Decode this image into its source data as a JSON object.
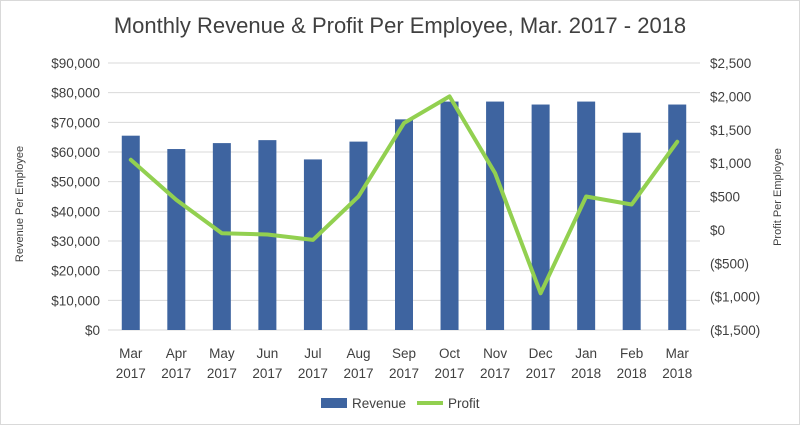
{
  "chart_data": {
    "type": "bar",
    "title": "Monthly Revenue & Profit Per Employee, Mar. 2017 - 2018",
    "categories": [
      [
        "Mar",
        "2017"
      ],
      [
        "Apr",
        "2017"
      ],
      [
        "May",
        "2017"
      ],
      [
        "Jun",
        "2017"
      ],
      [
        "Jul",
        "2017"
      ],
      [
        "Aug",
        "2017"
      ],
      [
        "Sep",
        "2017"
      ],
      [
        "Oct",
        "2017"
      ],
      [
        "Nov",
        "2017"
      ],
      [
        "Dec",
        "2017"
      ],
      [
        "Jan",
        "2018"
      ],
      [
        "Feb",
        "2018"
      ],
      [
        "Mar",
        "2018"
      ]
    ],
    "ylabel_left": "Revenue Per Employee",
    "ylabel_right": "Profit Per Employee",
    "ylim_left": [
      0,
      90000
    ],
    "ylim_right": [
      -1500,
      2500
    ],
    "yticks_left": [
      "$0",
      "$10,000",
      "$20,000",
      "$30,000",
      "$40,000",
      "$50,000",
      "$60,000",
      "$70,000",
      "$80,000",
      "$90,000"
    ],
    "yticks_right": [
      "($1,500)",
      "($1,000)",
      "($500)",
      "$0",
      "$500",
      "$1,000",
      "$1,500",
      "$2,000",
      "$2,500"
    ],
    "grid": true,
    "legend_position": "bottom",
    "series": [
      {
        "name": "Revenue",
        "type": "bar",
        "axis": "left",
        "color": "#3e64a0",
        "values": [
          65500,
          61000,
          63000,
          64000,
          57500,
          63500,
          71000,
          77000,
          77000,
          76000,
          77000,
          66500,
          76000
        ]
      },
      {
        "name": "Profit",
        "type": "line",
        "axis": "right",
        "color": "#92d050",
        "values": [
          1050,
          450,
          -50,
          -70,
          -150,
          500,
          1600,
          2000,
          850,
          -950,
          500,
          380,
          1320
        ]
      }
    ]
  }
}
